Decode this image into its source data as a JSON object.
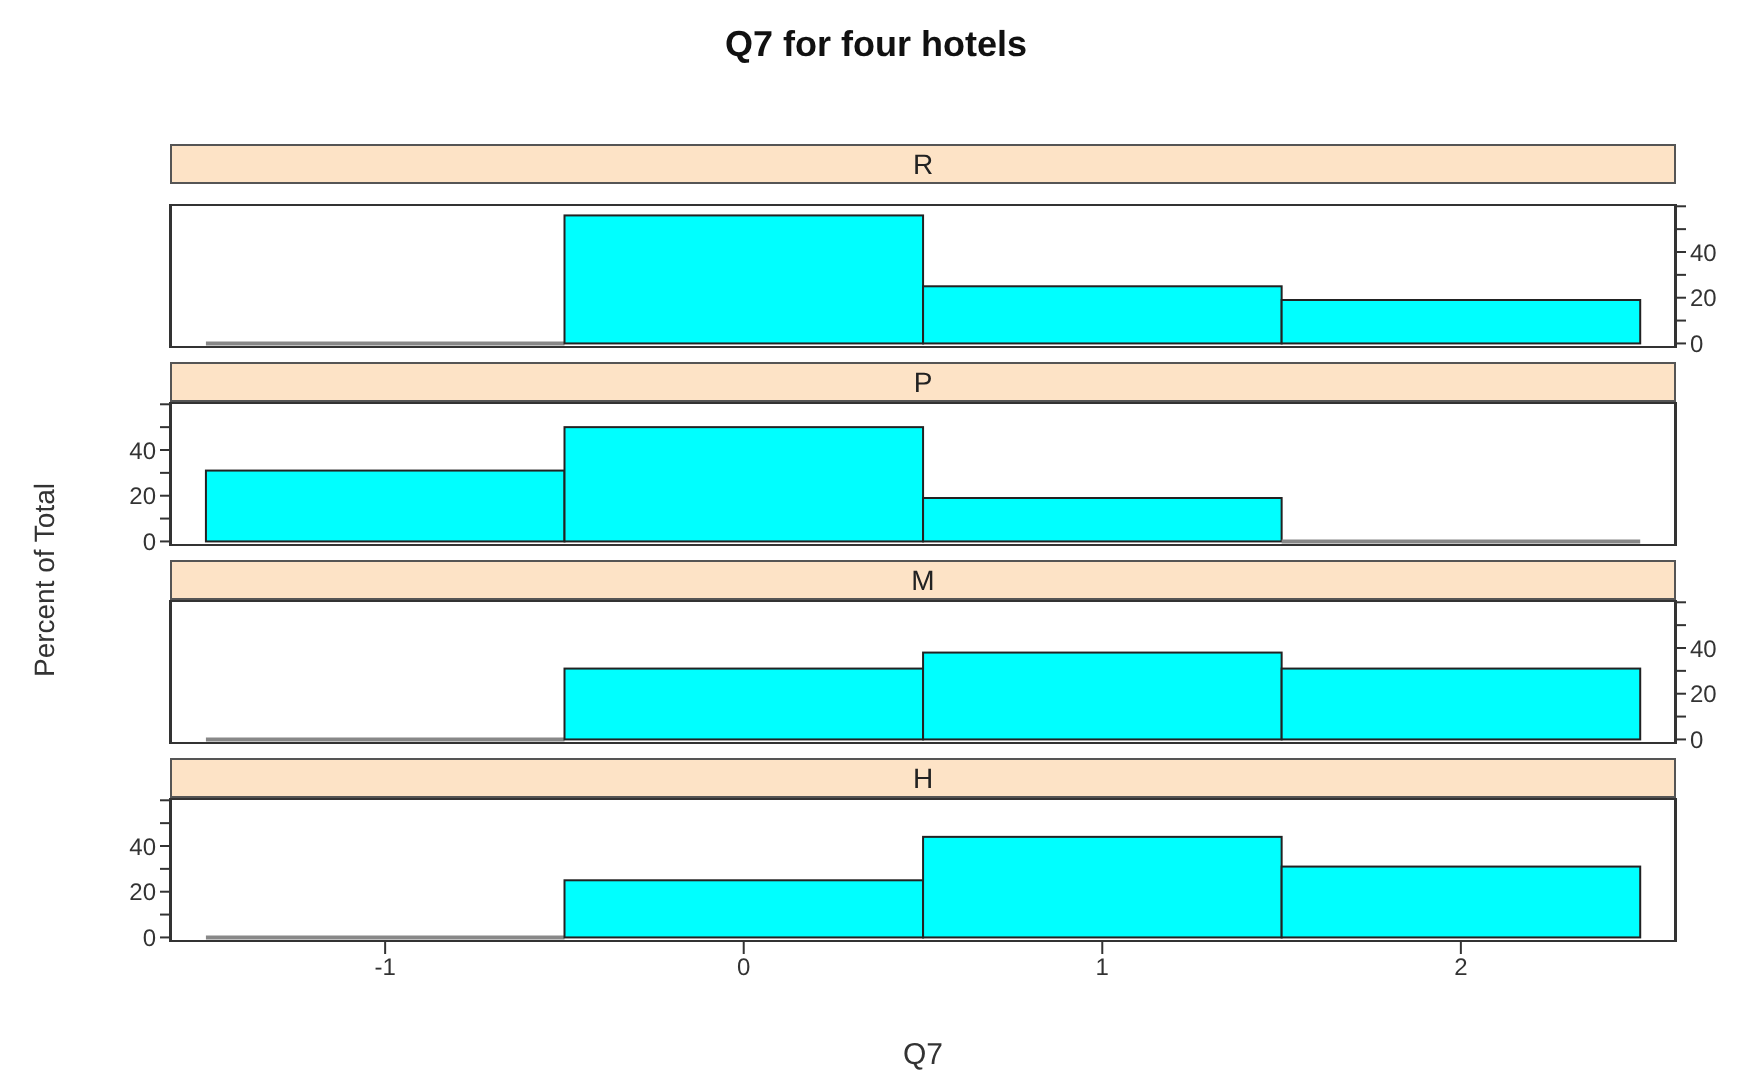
{
  "chart_data": [
    {
      "type": "histogram",
      "title": "Q7 for four hotels",
      "subtitle": "R",
      "bins": [
        -1.5,
        -0.5,
        0.5,
        1.5,
        2.5
      ],
      "series": [
        {
          "values": [
            0,
            56,
            25,
            19
          ],
          "color": "#00ffff",
          "axis": "y2"
        }
      ],
      "xlim": [
        -1.6,
        2.6
      ],
      "xticks": [
        -1,
        0,
        1,
        2
      ],
      "y2lim": [
        -2,
        61
      ],
      "y2ticks": [
        0,
        {
          "value": 10,
          "label": null
        },
        20,
        {
          "value": 30,
          "label": null
        },
        40,
        {
          "value": 50,
          "label": null
        },
        {
          "value": 60,
          "label": null
        }
      ],
      "tick_labels": "y"
    },
    {
      "type": "histogram",
      "subtitle": "P",
      "ylabel": "Percent of Total",
      "bins": [
        -1.5,
        -0.5,
        0.5,
        1.5,
        2.5
      ],
      "series": [
        {
          "values": [
            31,
            50,
            19,
            0
          ],
          "color": "#00ffff",
          "axis": "y"
        }
      ],
      "xlim": [
        -1.6,
        2.6
      ],
      "ylim": [
        -2,
        61
      ],
      "yticks": [
        0,
        {
          "value": 10,
          "label": null
        },
        20,
        {
          "value": 30,
          "label": null
        },
        40,
        {
          "value": 50,
          "label": null
        },
        {
          "value": 60,
          "label": null
        }
      ],
      "tick_labels": "y"
    },
    {
      "type": "histogram",
      "subtitle": "M",
      "bins": [
        -1.5,
        -0.5,
        0.5,
        1.5,
        2.5
      ],
      "series": [
        {
          "values": [
            0,
            31,
            38,
            31
          ],
          "color": "#00ffff",
          "axis": "y2"
        }
      ],
      "xlim": [
        -1.6,
        2.6
      ],
      "y2lim": [
        -2,
        61
      ],
      "y2ticks": [
        0,
        {
          "value": 10,
          "label": null
        },
        20,
        {
          "value": 30,
          "label": null
        },
        40,
        {
          "value": 50,
          "label": null
        },
        {
          "value": 60,
          "label": null
        }
      ],
      "tick_labels": "y"
    },
    {
      "type": "histogram",
      "subtitle": "H",
      "xlabel": "Q7",
      "bins": [
        -1.5,
        -0.5,
        0.5,
        1.5,
        2.5
      ],
      "series": [
        {
          "values": [
            0,
            25,
            44,
            31
          ],
          "color": "#00ffff",
          "axis": "y"
        }
      ],
      "xlim": [
        -1.6,
        2.6
      ],
      "xticks": [
        -1,
        0,
        1,
        2
      ],
      "ylim": [
        -2,
        61
      ],
      "yticks": [
        0,
        {
          "value": 10,
          "label": null
        },
        20,
        {
          "value": 30,
          "label": null
        },
        40,
        {
          "value": 50,
          "label": null
        },
        {
          "value": 60,
          "label": null
        }
      ]
    }
  ]
}
